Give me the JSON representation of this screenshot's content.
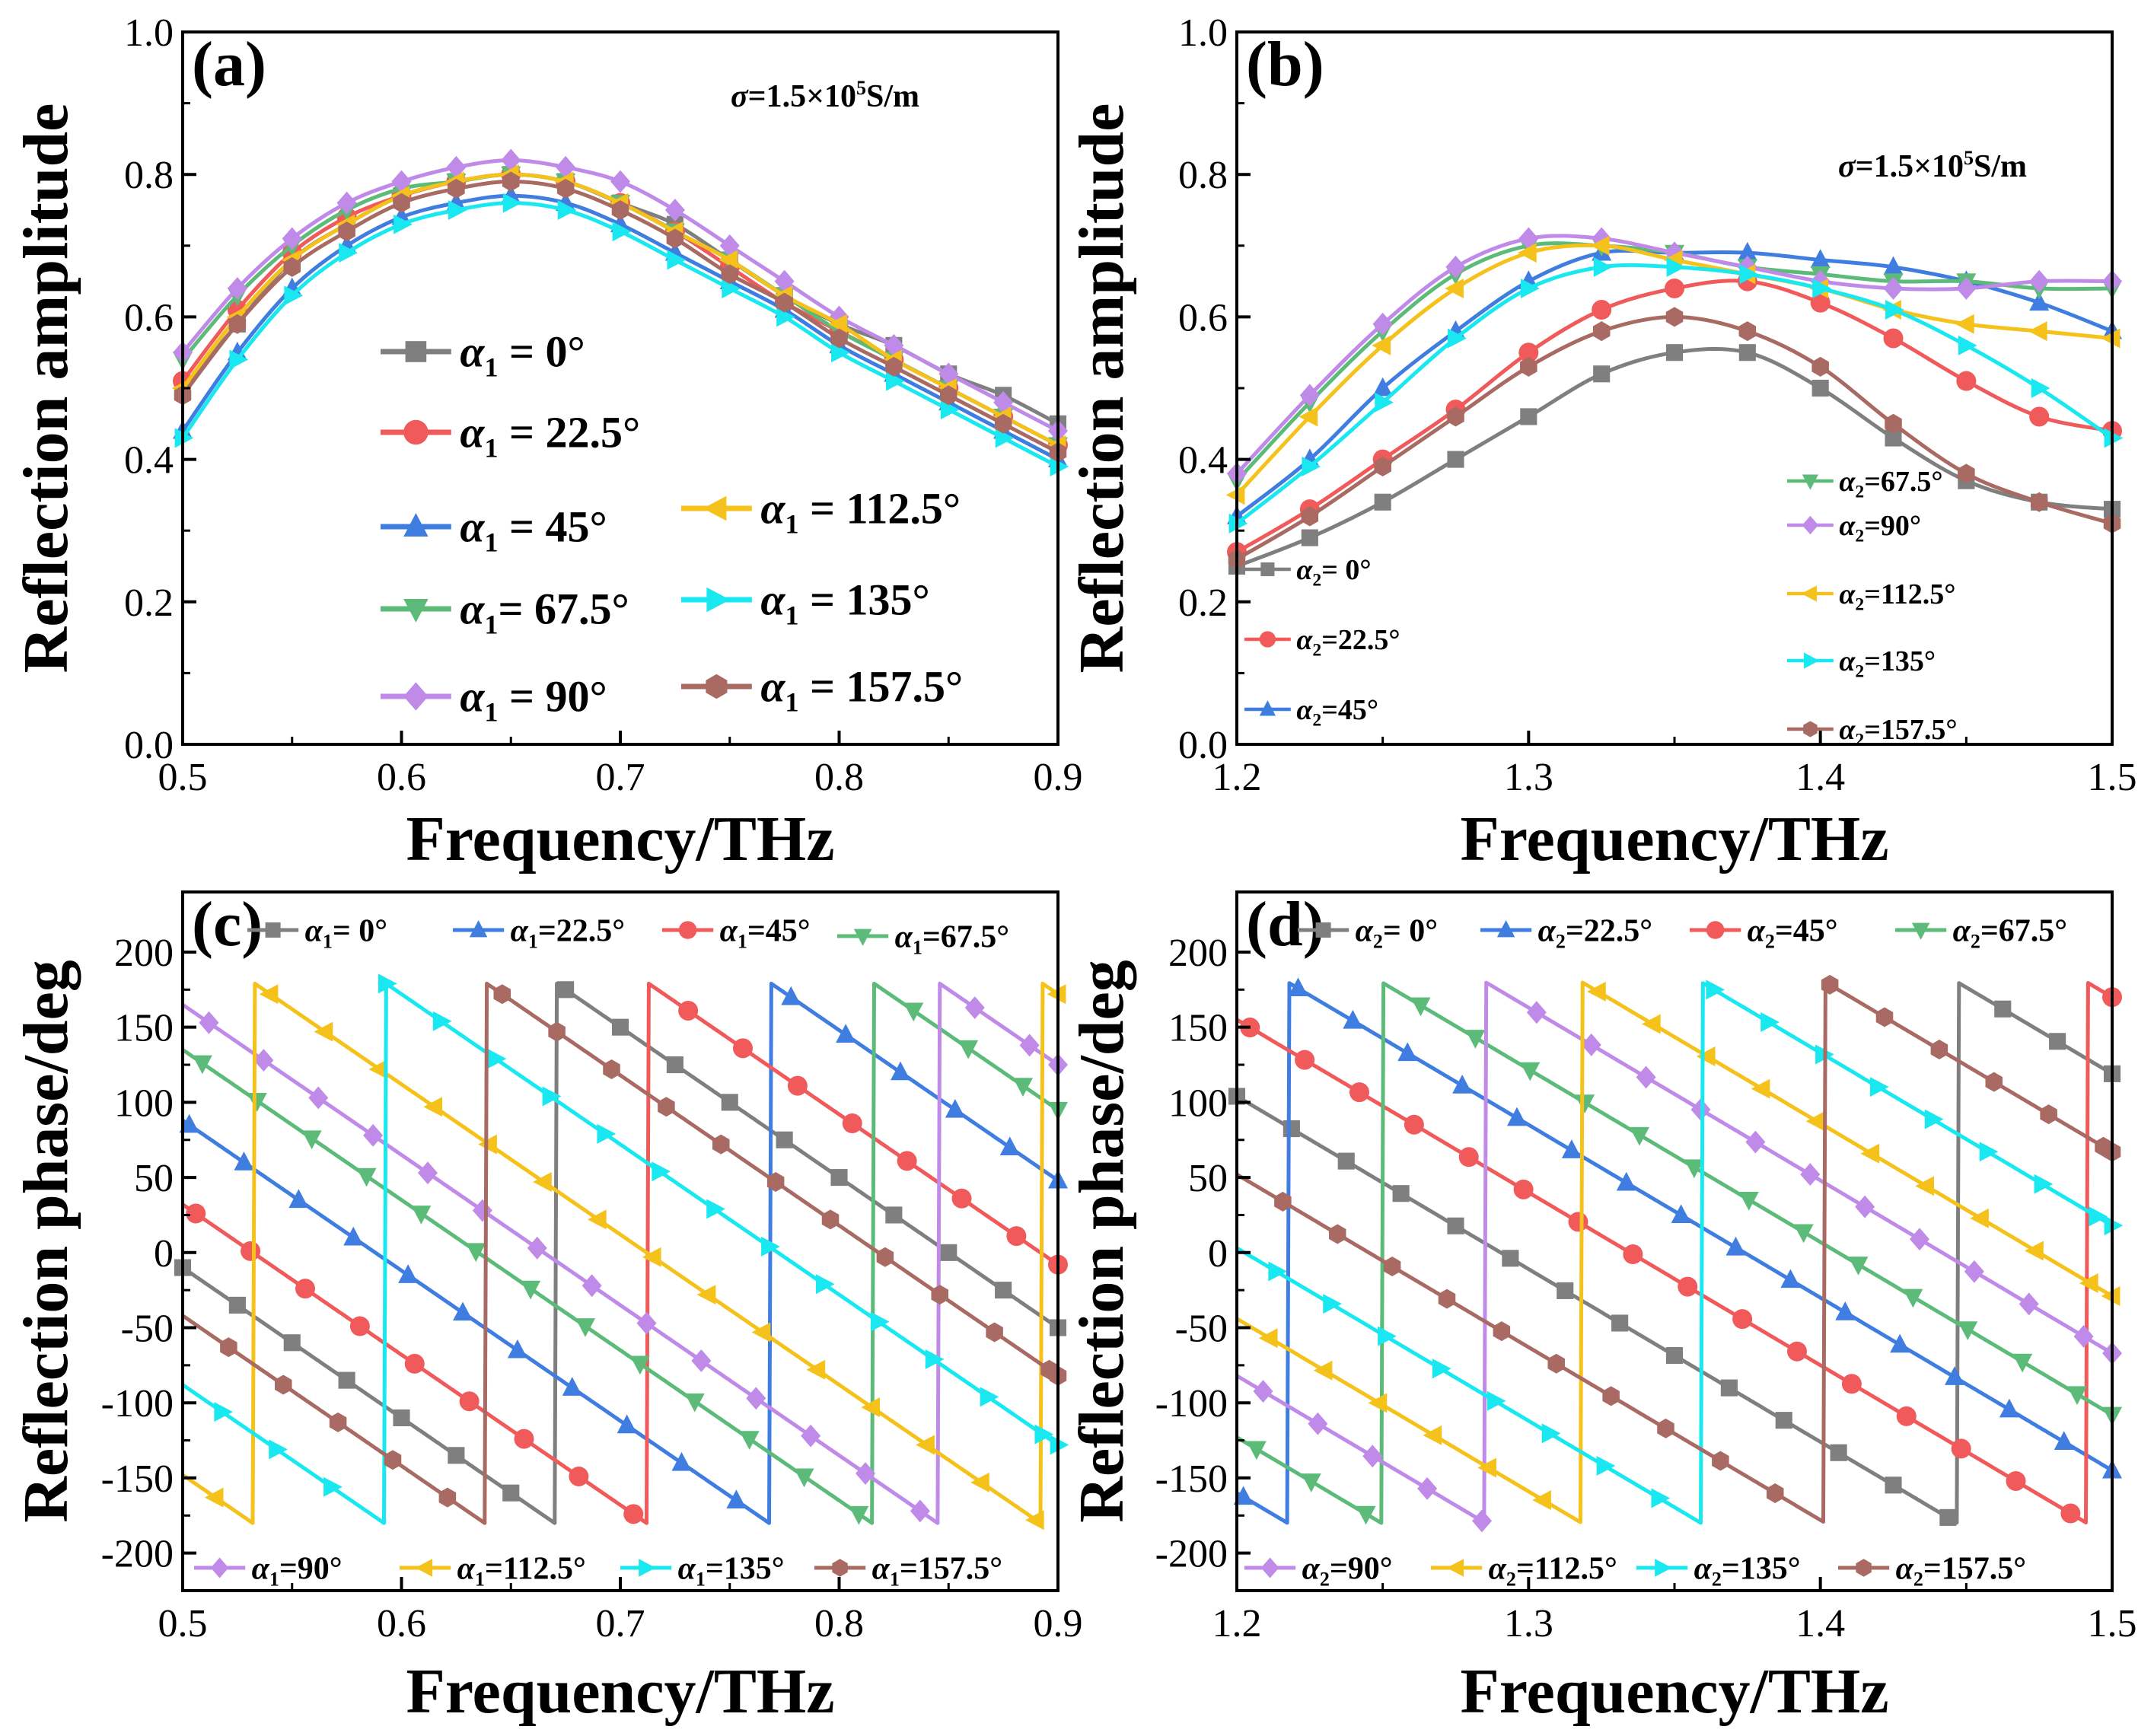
{
  "colors": {
    "gray": "#7f7f7f",
    "red": "#f05a5a",
    "blue": "#3f7de0",
    "green": "#5dbb7a",
    "purple": "#c08be8",
    "yellow": "#f5c21b",
    "cyan": "#19e8f0",
    "brown": "#a86a62"
  },
  "chart_data": [
    {
      "id": "a",
      "type": "line",
      "panel_label": "(a)",
      "xlabel": "Frequency/THz",
      "ylabel": "Reflection amplitude",
      "xlim": [
        0.5,
        0.9
      ],
      "ylim": [
        0.0,
        1.0
      ],
      "xticks": [
        "0.5",
        "0.6",
        "0.7",
        "0.8",
        "0.9"
      ],
      "yticks": [
        "0.0",
        "0.2",
        "0.4",
        "0.6",
        "0.8",
        "1.0"
      ],
      "annotation": {
        "prefix": "σ=1.5×10",
        "sup": "5",
        "suffix": "S/m"
      },
      "x": [
        0.5,
        0.525,
        0.55,
        0.575,
        0.6,
        0.625,
        0.65,
        0.675,
        0.7,
        0.725,
        0.75,
        0.775,
        0.8,
        0.825,
        0.85,
        0.875,
        0.9
      ],
      "series": [
        {
          "name": "α1 = 0°",
          "base": "α",
          "sub": "1",
          "eq": " = ",
          "val": "0°",
          "color": "gray",
          "marker": "square",
          "values": [
            0.5,
            0.59,
            0.68,
            0.73,
            0.77,
            0.79,
            0.8,
            0.79,
            0.76,
            0.73,
            0.68,
            0.63,
            0.59,
            0.56,
            0.52,
            0.49,
            0.45
          ]
        },
        {
          "name": "α1 = 22.5°",
          "base": "α",
          "sub": "1",
          "eq": " = ",
          "val": "22.5°",
          "color": "red",
          "marker": "circle",
          "values": [
            0.51,
            0.61,
            0.69,
            0.74,
            0.77,
            0.79,
            0.8,
            0.79,
            0.76,
            0.72,
            0.67,
            0.62,
            0.58,
            0.54,
            0.5,
            0.46,
            0.42
          ]
        },
        {
          "name": "α1 = 45°",
          "base": "α",
          "sub": "1",
          "eq": " = ",
          "val": "45°",
          "color": "blue",
          "marker": "triangle-up",
          "values": [
            0.44,
            0.55,
            0.64,
            0.7,
            0.74,
            0.76,
            0.77,
            0.76,
            0.73,
            0.69,
            0.65,
            0.61,
            0.56,
            0.52,
            0.48,
            0.44,
            0.4
          ]
        },
        {
          "name": "α1 = 67.5°",
          "base": "α",
          "sub": "1",
          "eq": "= ",
          "val": "67.5°",
          "color": "green",
          "marker": "triangle-down",
          "values": [
            0.54,
            0.63,
            0.7,
            0.75,
            0.78,
            0.79,
            0.8,
            0.79,
            0.76,
            0.72,
            0.68,
            0.63,
            0.58,
            0.54,
            0.5,
            0.46,
            0.42
          ]
        },
        {
          "name": "α1 = 90°",
          "base": "α",
          "sub": "1",
          "eq": " = ",
          "val": "90°",
          "color": "purple",
          "marker": "diamond",
          "values": [
            0.55,
            0.64,
            0.71,
            0.76,
            0.79,
            0.81,
            0.82,
            0.81,
            0.79,
            0.75,
            0.7,
            0.65,
            0.6,
            0.56,
            0.52,
            0.48,
            0.44
          ]
        },
        {
          "name": "α1 = 112.5°",
          "base": "α",
          "sub": "1",
          "eq": " = ",
          "val": "112.5°",
          "color": "yellow",
          "marker": "triangle-left",
          "values": [
            0.5,
            0.6,
            0.68,
            0.73,
            0.77,
            0.79,
            0.8,
            0.79,
            0.76,
            0.72,
            0.68,
            0.63,
            0.59,
            0.54,
            0.5,
            0.46,
            0.42
          ]
        },
        {
          "name": "α1 = 135°",
          "base": "α",
          "sub": "1",
          "eq": " = ",
          "val": "135°",
          "color": "cyan",
          "marker": "triangle-right",
          "values": [
            0.43,
            0.54,
            0.63,
            0.69,
            0.73,
            0.75,
            0.76,
            0.75,
            0.72,
            0.68,
            0.64,
            0.6,
            0.55,
            0.51,
            0.47,
            0.43,
            0.39
          ]
        },
        {
          "name": "α1 = 157.5°",
          "base": "α",
          "sub": "1",
          "eq": " = ",
          "val": "157.5°",
          "color": "brown",
          "marker": "hexagon",
          "values": [
            0.49,
            0.59,
            0.67,
            0.72,
            0.76,
            0.78,
            0.79,
            0.78,
            0.75,
            0.71,
            0.66,
            0.62,
            0.57,
            0.53,
            0.49,
            0.45,
            0.41
          ]
        }
      ]
    },
    {
      "id": "b",
      "type": "line",
      "panel_label": "(b)",
      "xlabel": "Frequency/THz",
      "ylabel": "Reflection amplitude",
      "xlim": [
        1.2,
        1.5
      ],
      "ylim": [
        0.0,
        1.0
      ],
      "xticks": [
        "1.2",
        "1.3",
        "1.4",
        "1.5"
      ],
      "yticks": [
        "0.0",
        "0.2",
        "0.4",
        "0.6",
        "0.8",
        "1.0"
      ],
      "annotation": {
        "prefix": "σ=1.5×10",
        "sup": "5",
        "suffix": "S/m"
      },
      "x": [
        1.2,
        1.225,
        1.25,
        1.275,
        1.3,
        1.325,
        1.35,
        1.375,
        1.4,
        1.425,
        1.45,
        1.475,
        1.5
      ],
      "series": [
        {
          "name": "α2= 0°",
          "base": "α",
          "sub": "2",
          "eq": "= ",
          "val": "0°",
          "color": "gray",
          "marker": "square",
          "values": [
            0.25,
            0.29,
            0.34,
            0.4,
            0.46,
            0.52,
            0.55,
            0.55,
            0.5,
            0.43,
            0.37,
            0.34,
            0.33
          ]
        },
        {
          "name": "α2=22.5°",
          "base": "α",
          "sub": "2",
          "eq": "=",
          "val": "22.5°",
          "color": "red",
          "marker": "circle",
          "values": [
            0.27,
            0.33,
            0.4,
            0.47,
            0.55,
            0.61,
            0.64,
            0.65,
            0.62,
            0.57,
            0.51,
            0.46,
            0.44
          ]
        },
        {
          "name": "α2=45°",
          "base": "α",
          "sub": "2",
          "eq": "=",
          "val": "45°",
          "color": "blue",
          "marker": "triangle-up",
          "values": [
            0.32,
            0.4,
            0.5,
            0.58,
            0.65,
            0.69,
            0.69,
            0.69,
            0.68,
            0.67,
            0.65,
            0.62,
            0.58
          ]
        },
        {
          "name": "α2=67.5°",
          "base": "α",
          "sub": "2",
          "eq": "=",
          "val": "67.5°",
          "color": "green",
          "marker": "triangle-down",
          "values": [
            0.37,
            0.48,
            0.58,
            0.66,
            0.7,
            0.7,
            0.69,
            0.67,
            0.66,
            0.65,
            0.65,
            0.64,
            0.64
          ]
        },
        {
          "name": "α2=90°",
          "base": "α",
          "sub": "2",
          "eq": "=",
          "val": "90°",
          "color": "purple",
          "marker": "diamond",
          "values": [
            0.38,
            0.49,
            0.59,
            0.67,
            0.71,
            0.71,
            0.69,
            0.67,
            0.65,
            0.64,
            0.64,
            0.65,
            0.65
          ]
        },
        {
          "name": "α2=112.5°",
          "base": "α",
          "sub": "2",
          "eq": "=",
          "val": "112.5°",
          "color": "yellow",
          "marker": "triangle-left",
          "values": [
            0.35,
            0.46,
            0.56,
            0.64,
            0.69,
            0.7,
            0.68,
            0.66,
            0.64,
            0.61,
            0.59,
            0.58,
            0.57
          ]
        },
        {
          "name": "α2=135°",
          "base": "α",
          "sub": "2",
          "eq": "=",
          "val": "135°",
          "color": "cyan",
          "marker": "triangle-right",
          "values": [
            0.31,
            0.39,
            0.48,
            0.57,
            0.64,
            0.67,
            0.67,
            0.66,
            0.64,
            0.61,
            0.56,
            0.5,
            0.43
          ]
        },
        {
          "name": "α2=157.5°",
          "base": "α",
          "sub": "2",
          "eq": "=",
          "val": "157.5°",
          "color": "brown",
          "marker": "hexagon",
          "values": [
            0.26,
            0.32,
            0.39,
            0.46,
            0.53,
            0.58,
            0.6,
            0.58,
            0.53,
            0.45,
            0.38,
            0.34,
            0.31
          ]
        }
      ]
    },
    {
      "id": "c",
      "type": "line",
      "panel_label": "(c)",
      "xlabel": "Frequency/THz",
      "ylabel": "Reflection phase/deg",
      "xlim": [
        0.5,
        0.9
      ],
      "ylim": [
        -225,
        240
      ],
      "xticks": [
        "0.5",
        "0.6",
        "0.7",
        "0.8",
        "0.9"
      ],
      "yticks": [
        "-200",
        "-150",
        "-100",
        "-50",
        "0",
        "50",
        "100",
        "150",
        "200"
      ],
      "phase_slope": -1000,
      "series": [
        {
          "name": "α1= 0°",
          "base": "α",
          "sub": "1",
          "eq": "= ",
          "val": "0°",
          "color": "gray",
          "marker": "square",
          "phase_at_start": -10
        },
        {
          "name": "α1=22.5°",
          "base": "α",
          "sub": "1",
          "eq": "=",
          "val": "22.5°",
          "color": "blue",
          "marker": "triangle-up",
          "phase_at_start": 88
        },
        {
          "name": "α1=45°",
          "base": "α",
          "sub": "1",
          "eq": "=",
          "val": "45°",
          "color": "red",
          "marker": "circle",
          "phase_at_start": 32
        },
        {
          "name": "α1=67.5°",
          "base": "α",
          "sub": "1",
          "eq": "=",
          "val": "67.5°",
          "color": "green",
          "marker": "triangle-down",
          "phase_at_start": 135
        },
        {
          "name": "α1=90°",
          "base": "α",
          "sub": "1",
          "eq": "=",
          "val": "90°",
          "color": "purple",
          "marker": "diamond",
          "phase_at_start": 165
        },
        {
          "name": "α1=112.5°",
          "base": "α",
          "sub": "1",
          "eq": "=",
          "val": "112.5°",
          "color": "yellow",
          "marker": "triangle-left",
          "phase_at_start": -148
        },
        {
          "name": "α1=135°",
          "base": "α",
          "sub": "1",
          "eq": "=",
          "val": "135°",
          "color": "cyan",
          "marker": "triangle-right",
          "phase_at_start": -88
        },
        {
          "name": "α1=157.5°",
          "base": "α",
          "sub": "1",
          "eq": "=",
          "val": "157.5°",
          "color": "brown",
          "marker": "hexagon",
          "phase_at_start": -42
        }
      ]
    },
    {
      "id": "d",
      "type": "line",
      "panel_label": "(d)",
      "xlabel": "Frequency/THz",
      "ylabel": "Reflection phase/deg",
      "xlim": [
        1.2,
        1.5
      ],
      "ylim": [
        -225,
        240
      ],
      "xticks": [
        "1.2",
        "1.3",
        "1.4",
        "1.5"
      ],
      "yticks": [
        "-200",
        "-150",
        "-100",
        "-50",
        "0",
        "50",
        "100",
        "150",
        "200"
      ],
      "phase_slope": -1150,
      "series": [
        {
          "name": "α2= 0°",
          "base": "α",
          "sub": "2",
          "eq": "= ",
          "val": "0°",
          "color": "gray",
          "marker": "square",
          "phase_at_start": 104
        },
        {
          "name": "α2=22.5°",
          "base": "α",
          "sub": "2",
          "eq": "=",
          "val": "22.5°",
          "color": "blue",
          "marker": "triangle-up",
          "phase_at_start": -160
        },
        {
          "name": "α2=45°",
          "base": "α",
          "sub": "2",
          "eq": "=",
          "val": "45°",
          "color": "red",
          "marker": "circle",
          "phase_at_start": 155
        },
        {
          "name": "α2=67.5°",
          "base": "α",
          "sub": "2",
          "eq": "=",
          "val": "67.5°",
          "color": "green",
          "marker": "triangle-down",
          "phase_at_start": -123
        },
        {
          "name": "α2=90°",
          "base": "α",
          "sub": "2",
          "eq": "=",
          "val": "90°",
          "color": "purple",
          "marker": "diamond",
          "phase_at_start": -82
        },
        {
          "name": "α2=112.5°",
          "base": "α",
          "sub": "2",
          "eq": "=",
          "val": "112.5°",
          "color": "yellow",
          "marker": "triangle-left",
          "phase_at_start": -44
        },
        {
          "name": "α2=135°",
          "base": "α",
          "sub": "2",
          "eq": "=",
          "val": "135°",
          "color": "cyan",
          "marker": "triangle-right",
          "phase_at_start": 3
        },
        {
          "name": "α2=157.5°",
          "base": "α",
          "sub": "2",
          "eq": "=",
          "val": "157.5°",
          "color": "brown",
          "marker": "hexagon",
          "phase_at_start": 52
        }
      ]
    }
  ]
}
